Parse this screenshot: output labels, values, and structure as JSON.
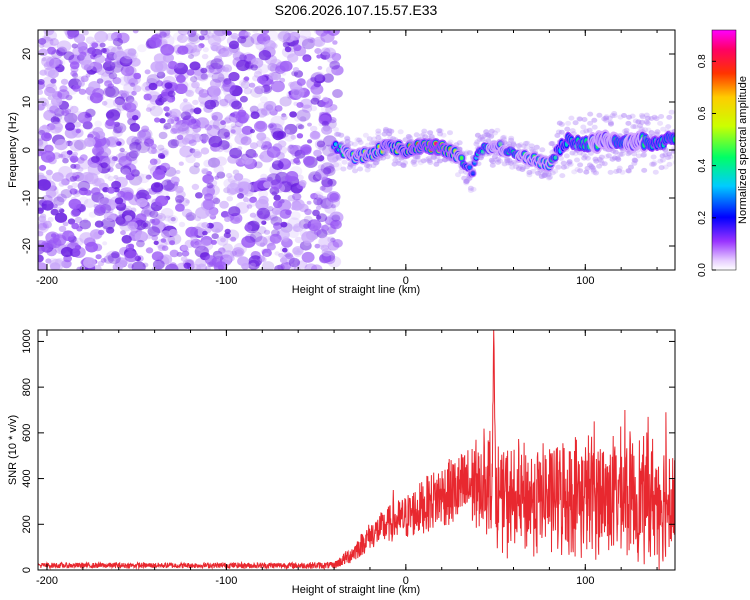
{
  "figure": {
    "title": "S206.2026.107.15.57.E33"
  },
  "chart_data": [
    {
      "type": "heatmap",
      "name": "spectrogram",
      "xlabel": "Height of straight line (km)",
      "ylabel": "Frequency (Hz)",
      "xlim": [
        -205,
        150
      ],
      "ylim": [
        -25,
        25
      ],
      "xticks": [
        -200,
        -100,
        0,
        100
      ],
      "yticks": [
        -20,
        -10,
        0,
        10,
        20
      ],
      "colorbar": {
        "label": "Normalized spectral amplitude",
        "range": [
          0.0,
          0.92
        ],
        "ticks": [
          0.0,
          0.2,
          0.4,
          0.6,
          0.8
        ],
        "colormap": [
          "#ff00ff",
          "#ff0000",
          "#ffff00",
          "#00ff00",
          "#00ffff",
          "#0000ff",
          "#ff00ff"
        ]
      },
      "noise_region": {
        "x": [
          -205,
          -38
        ],
        "y": [
          -25,
          25
        ],
        "amplitude_range": [
          0.02,
          0.1
        ]
      },
      "signal_track": {
        "x": [
          -40,
          -30,
          -20,
          -10,
          0,
          10,
          20,
          30,
          37,
          40,
          50,
          60,
          70,
          80,
          85,
          90,
          100,
          110,
          120,
          130,
          140,
          150
        ],
        "freq_hz": [
          1,
          -1.5,
          -1,
          1,
          0,
          1,
          0.5,
          -1.5,
          -5,
          0,
          1,
          -1,
          -2,
          -3,
          0,
          2,
          1,
          2,
          1,
          2,
          1,
          3
        ],
        "peak_amplitude": [
          0.3,
          0.5,
          0.55,
          0.6,
          0.65,
          0.75,
          0.85,
          0.5,
          0.2,
          0.35,
          0.45,
          0.4,
          0.45,
          0.5,
          0.3,
          0.35,
          0.4,
          0.45,
          0.4,
          0.45,
          0.35,
          0.4
        ]
      },
      "colors": {
        "noise": "#7b2ff0",
        "track_core": "#ff2020"
      }
    },
    {
      "type": "line",
      "name": "snr",
      "xlabel": "Height of straight line (km)",
      "ylabel": "SNR (10 * v/v)",
      "xlim": [
        -205,
        150
      ],
      "ylim": [
        0,
        1050
      ],
      "xticks": [
        -200,
        -100,
        0,
        100
      ],
      "yticks": [
        0,
        200,
        400,
        600,
        800,
        1000
      ],
      "color": "#e8282f",
      "series": [
        {
          "name": "SNR",
          "x": [
            -205,
            -100,
            -40,
            -30,
            -20,
            -10,
            0,
            10,
            20,
            30,
            40,
            48,
            49,
            50,
            60,
            80,
            100,
            120,
            140,
            150
          ],
          "baseline": [
            20,
            20,
            20,
            70,
            150,
            200,
            230,
            280,
            330,
            350,
            380,
            400,
            1050,
            330,
            300,
            320,
            330,
            330,
            310,
            320
          ],
          "amplitude": [
            12,
            12,
            15,
            40,
            60,
            80,
            100,
            120,
            140,
            160,
            200,
            230,
            0,
            230,
            240,
            240,
            260,
            260,
            270,
            270
          ]
        },
        {
          "name": "spikes",
          "x": [
            -7,
            49,
            105,
            122,
            135,
            145
          ],
          "y": [
            350,
            1050,
            650,
            700,
            670,
            690
          ]
        }
      ]
    }
  ]
}
